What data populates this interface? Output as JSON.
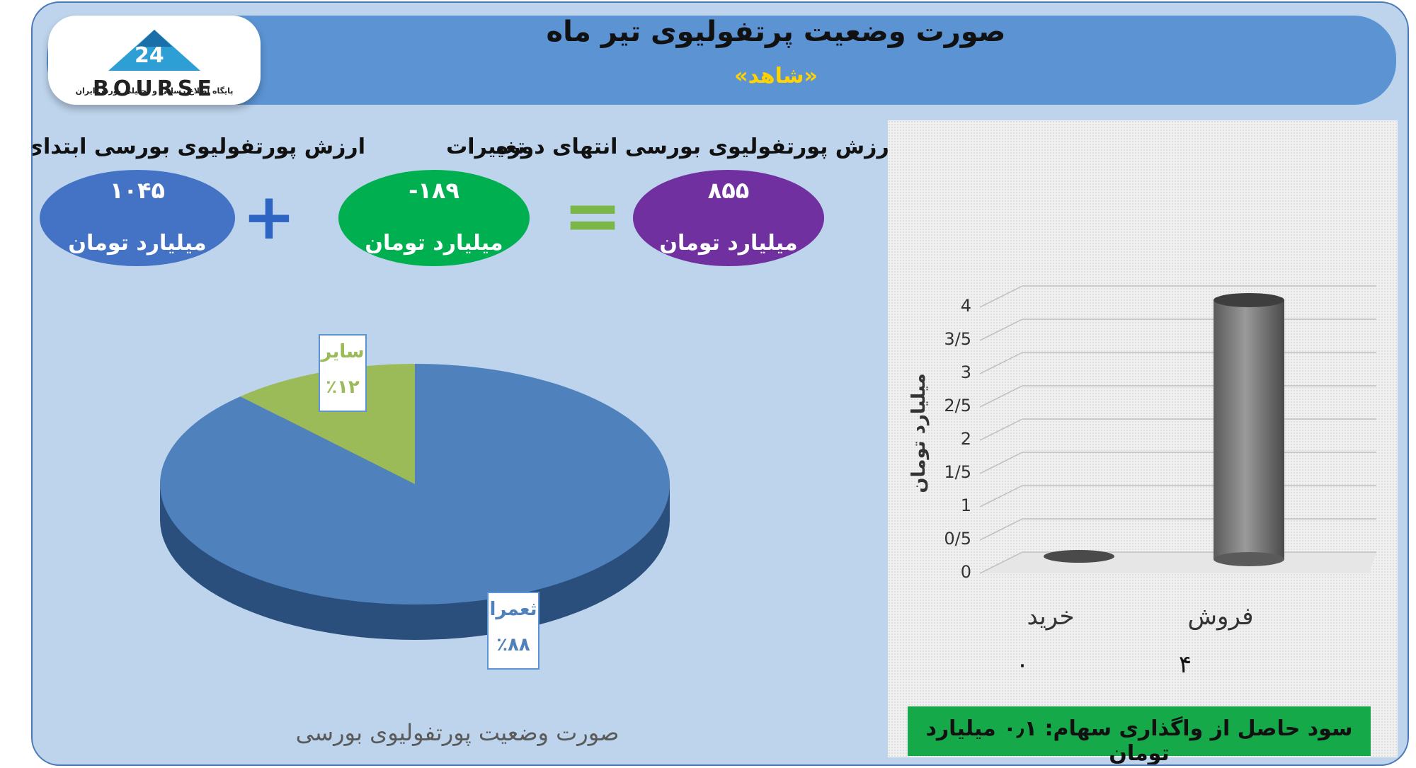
{
  "header": {
    "title": "صورت وضعیت پرتفولیوی تیر ماه",
    "subtitle": "«شاهد»",
    "logo_text": "BOURSE",
    "logo_tag": "پایگاه اطلاع رسانی و تحلیلی بورس ایران"
  },
  "summary": {
    "start_label": "ارزش پورتفولیوی بورسی ابتدای دوره",
    "start_value": "۱۰۴۵",
    "change_label": "تغییرات",
    "change_value": "-۱۸۹",
    "end_label": "ارزش پورتفولیوی بورسی انتهای دوره",
    "end_value": "۸۵۵",
    "unit": "میلیارد تومان",
    "plus": "+",
    "equals": "="
  },
  "colors": {
    "start": "#4472c4",
    "change": "#00b050",
    "end": "#7030a0",
    "pie_main": "#4f81bd",
    "pie_other": "#9bbb59"
  },
  "chart_data": [
    {
      "type": "pie",
      "title": "صورت وضعیت پورتفولیوی بورسی",
      "labels": [
        "ثعمرا",
        "سایر"
      ],
      "values": [
        88,
        12
      ],
      "value_labels": [
        "٪۸۸",
        "٪۱۲"
      ]
    },
    {
      "type": "bar",
      "categories": [
        "خرید",
        "فروش"
      ],
      "values": [
        0,
        4
      ],
      "value_labels": [
        "۰",
        "۴"
      ],
      "ylabel": "میلیارد تومان",
      "ylim": [
        0,
        4
      ],
      "yticks": [
        "0",
        "0/5",
        "1",
        "1/5",
        "2",
        "2/5",
        "3",
        "3/5",
        "4"
      ],
      "grid": true
    }
  ],
  "footer": {
    "profit_text": "سود حاصل از واگذاری سهام: ۰٫۱ میلیارد تومان"
  }
}
